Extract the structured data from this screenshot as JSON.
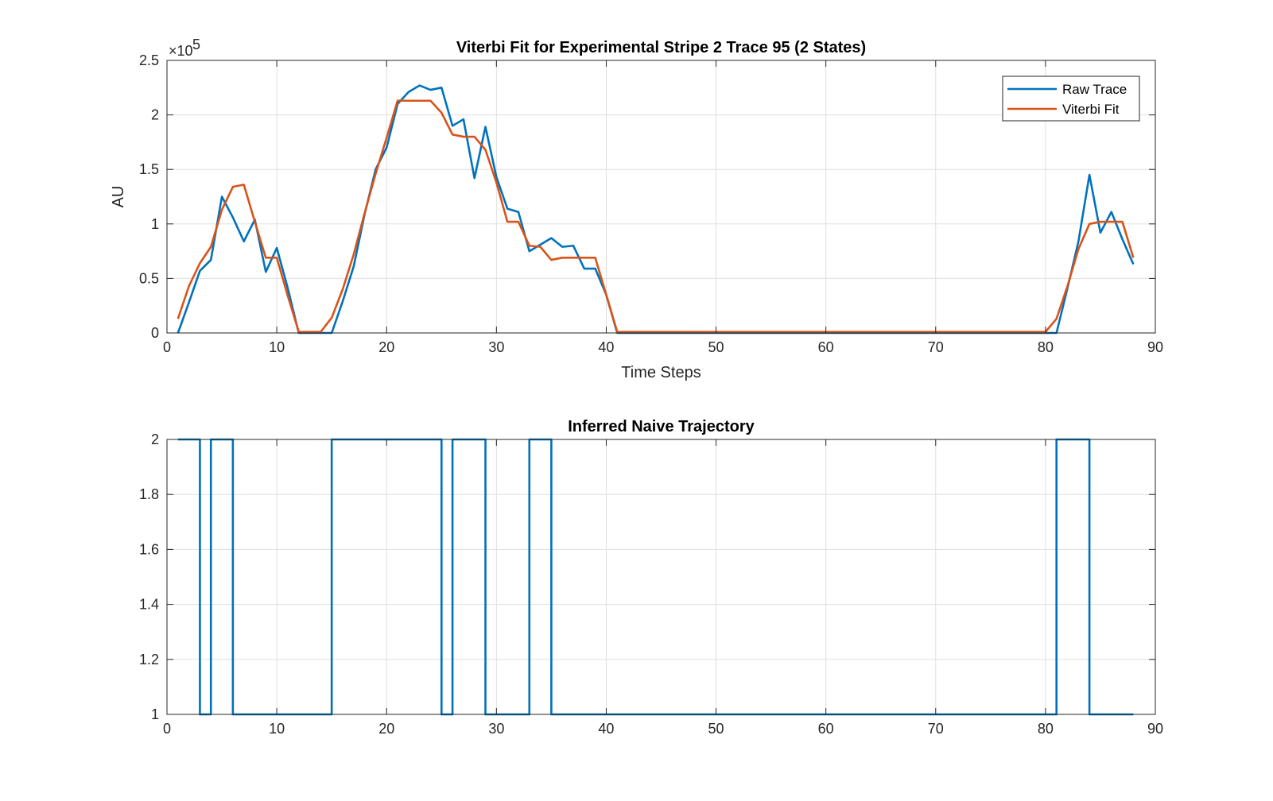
{
  "chart_data": [
    {
      "type": "line",
      "title": "Viterbi Fit for Experimental Stripe 2 Trace 95 (2 States)",
      "xlabel": "Time Steps",
      "ylabel": "AU",
      "y_exponent_label": "×10",
      "y_exponent_power": "5",
      "xlim": [
        0,
        90
      ],
      "ylim": [
        0,
        2.5
      ],
      "xticks": [
        "0",
        "10",
        "20",
        "30",
        "40",
        "50",
        "60",
        "70",
        "80",
        "90"
      ],
      "yticks": [
        "0",
        "0.5",
        "1",
        "1.5",
        "2",
        "2.5"
      ],
      "grid": true,
      "legend_position": "top-right",
      "units_note": "y values in units of 10^5",
      "series": [
        {
          "name": "Raw Trace",
          "color": "#0072BD",
          "x": [
            1,
            2,
            3,
            4,
            5,
            6,
            7,
            8,
            9,
            10,
            11,
            12,
            13,
            14,
            15,
            16,
            17,
            18,
            19,
            20,
            21,
            22,
            23,
            24,
            25,
            26,
            27,
            28,
            29,
            30,
            31,
            32,
            33,
            34,
            35,
            36,
            37,
            38,
            39,
            40,
            41,
            42,
            43,
            44,
            45,
            46,
            47,
            48,
            49,
            50,
            51,
            52,
            53,
            54,
            55,
            56,
            57,
            58,
            59,
            60,
            61,
            62,
            63,
            64,
            65,
            66,
            67,
            68,
            69,
            70,
            71,
            72,
            73,
            74,
            75,
            76,
            77,
            78,
            79,
            80,
            81,
            82,
            83,
            84,
            85,
            86,
            87,
            88
          ],
          "y": [
            0.0,
            0.28,
            0.57,
            0.67,
            1.25,
            1.06,
            0.84,
            1.04,
            0.56,
            0.78,
            0.41,
            0.0,
            0.0,
            0.0,
            0.0,
            0.29,
            0.61,
            1.09,
            1.5,
            1.7,
            2.1,
            2.21,
            2.27,
            2.23,
            2.25,
            1.9,
            1.96,
            1.42,
            1.89,
            1.43,
            1.14,
            1.11,
            0.75,
            0.81,
            0.87,
            0.79,
            0.8,
            0.59,
            0.59,
            0.35,
            0.0,
            0.0,
            0.0,
            0.0,
            0.0,
            0.0,
            0.0,
            0.0,
            0.0,
            0.0,
            0.0,
            0.0,
            0.0,
            0.0,
            0.0,
            0.0,
            0.0,
            0.0,
            0.0,
            0.0,
            0.0,
            0.0,
            0.0,
            0.0,
            0.0,
            0.0,
            0.0,
            0.0,
            0.0,
            0.0,
            0.0,
            0.0,
            0.0,
            0.0,
            0.0,
            0.0,
            0.0,
            0.0,
            0.0,
            0.0,
            0.0,
            0.41,
            0.84,
            1.45,
            0.92,
            1.11,
            0.86,
            0.63
          ]
        },
        {
          "name": "Viterbi Fit",
          "color": "#D95319",
          "x": [
            1,
            2,
            3,
            4,
            5,
            6,
            7,
            8,
            9,
            10,
            11,
            12,
            13,
            14,
            15,
            16,
            17,
            18,
            19,
            20,
            21,
            22,
            23,
            24,
            25,
            26,
            27,
            28,
            29,
            30,
            31,
            32,
            33,
            34,
            35,
            36,
            37,
            38,
            39,
            40,
            41,
            42,
            43,
            44,
            45,
            46,
            47,
            48,
            49,
            50,
            51,
            52,
            53,
            54,
            55,
            56,
            57,
            58,
            59,
            60,
            61,
            62,
            63,
            64,
            65,
            66,
            67,
            68,
            69,
            70,
            71,
            72,
            73,
            74,
            75,
            76,
            77,
            78,
            79,
            80,
            81,
            82,
            83,
            84,
            85,
            86,
            87,
            88
          ],
          "y": [
            0.13,
            0.43,
            0.64,
            0.79,
            1.13,
            1.34,
            1.36,
            1.02,
            0.69,
            0.69,
            0.34,
            0.01,
            0.01,
            0.01,
            0.14,
            0.4,
            0.72,
            1.1,
            1.46,
            1.79,
            2.13,
            2.13,
            2.13,
            2.13,
            2.02,
            1.82,
            1.8,
            1.8,
            1.68,
            1.38,
            1.02,
            1.02,
            0.8,
            0.79,
            0.67,
            0.69,
            0.69,
            0.69,
            0.69,
            0.35,
            0.01,
            0.01,
            0.01,
            0.01,
            0.01,
            0.01,
            0.01,
            0.01,
            0.01,
            0.01,
            0.01,
            0.01,
            0.01,
            0.01,
            0.01,
            0.01,
            0.01,
            0.01,
            0.01,
            0.01,
            0.01,
            0.01,
            0.01,
            0.01,
            0.01,
            0.01,
            0.01,
            0.01,
            0.01,
            0.01,
            0.01,
            0.01,
            0.01,
            0.01,
            0.01,
            0.01,
            0.01,
            0.01,
            0.01,
            0.01,
            0.13,
            0.43,
            0.77,
            1.0,
            1.02,
            1.02,
            1.02,
            0.69
          ]
        }
      ]
    },
    {
      "type": "line",
      "step": true,
      "title": "Inferred Naive Trajectory",
      "xlabel": "",
      "ylabel": "",
      "xlim": [
        0,
        90
      ],
      "ylim": [
        1,
        2
      ],
      "xticks": [
        "0",
        "10",
        "20",
        "30",
        "40",
        "50",
        "60",
        "70",
        "80",
        "90"
      ],
      "yticks": [
        "1",
        "1.2",
        "1.4",
        "1.6",
        "1.8",
        "2"
      ],
      "grid": true,
      "series": [
        {
          "color": "#0072BD",
          "x": [
            1,
            3,
            4,
            6,
            15,
            25,
            26,
            29,
            33,
            35,
            81,
            84,
            88
          ],
          "y": [
            2,
            1,
            2,
            1,
            2,
            1,
            2,
            1,
            2,
            1,
            2,
            1,
            1
          ]
        }
      ]
    }
  ]
}
